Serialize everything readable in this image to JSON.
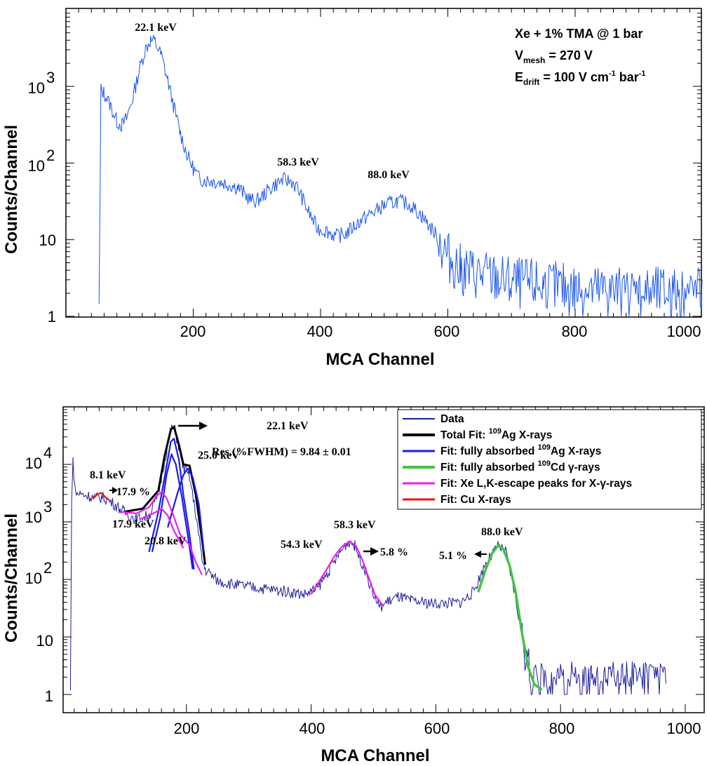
{
  "colors": {
    "data1": "#1a55f0",
    "data2": "#1e1e9c",
    "total": "#000000",
    "ag": "#1a1aee",
    "cd": "#44c244",
    "escape": "#f01cf0",
    "cu": "#ee1111"
  },
  "chart_data": [
    {
      "type": "line",
      "title": "",
      "xlabel": "MCA  Channel",
      "ylabel": "Counts/Channel",
      "yscale": "log",
      "xlim": [
        0,
        1000
      ],
      "ylim": [
        1,
        10000
      ],
      "xticks": [
        "200",
        "400",
        "600",
        "800",
        "1000"
      ],
      "yticks": [
        "1",
        "10",
        "10",
        "10"
      ],
      "ytick_exponents": [
        "",
        "",
        "2",
        "3"
      ],
      "info": {
        "line1": "Xe + 1% TMA @ 1 bar",
        "line2_main": "V",
        "line2_sub": "mesh",
        "line2_rest": " = 270 V",
        "line3_main": "E",
        "line3_sub": "drift",
        "line3_mid": " = 100 V cm",
        "line3_sup1": "-1",
        "line3_mid2": " bar",
        "line3_sup2": "-1"
      },
      "peak_labels": [
        {
          "text": "22.1 keV",
          "channel": 143
        },
        {
          "text": "58.3 keV",
          "channel": 337
        },
        {
          "text": "88.0 keV",
          "channel": 505
        }
      ],
      "series": [
        {
          "name": "Data",
          "points": [
            [
              52,
              1
            ],
            [
              55,
              900
            ],
            [
              60,
              820
            ],
            [
              70,
              560
            ],
            [
              80,
              350
            ],
            [
              88,
              310
            ],
            [
              95,
              380
            ],
            [
              105,
              700
            ],
            [
              115,
              1600
            ],
            [
              125,
              3100
            ],
            [
              133,
              4000
            ],
            [
              140,
              3800
            ],
            [
              150,
              2500
            ],
            [
              160,
              1200
            ],
            [
              170,
              520
            ],
            [
              180,
              240
            ],
            [
              190,
              130
            ],
            [
              200,
              85
            ],
            [
              210,
              62
            ],
            [
              230,
              58
            ],
            [
              250,
              55
            ],
            [
              270,
              48
            ],
            [
              280,
              40
            ],
            [
              290,
              33
            ],
            [
              300,
              32
            ],
            [
              310,
              38
            ],
            [
              325,
              50
            ],
            [
              340,
              60
            ],
            [
              355,
              58
            ],
            [
              365,
              45
            ],
            [
              380,
              24
            ],
            [
              395,
              14
            ],
            [
              410,
              13
            ],
            [
              425,
              11
            ],
            [
              440,
              12
            ],
            [
              460,
              17
            ],
            [
              480,
              22
            ],
            [
              500,
              28
            ],
            [
              520,
              32
            ],
            [
              540,
              29
            ],
            [
              560,
              20
            ],
            [
              580,
              12
            ],
            [
              600,
              6
            ],
            [
              620,
              4
            ],
            [
              650,
              3.5
            ],
            [
              680,
              3
            ],
            [
              700,
              2.7
            ],
            [
              750,
              2.5
            ],
            [
              800,
              2.2
            ],
            [
              850,
              2.1
            ],
            [
              900,
              2
            ],
            [
              950,
              2
            ],
            [
              1000,
              2
            ]
          ]
        }
      ]
    },
    {
      "type": "line",
      "title": "",
      "xlabel": "MCA  Channel",
      "ylabel": "Counts/Channel",
      "yscale": "log",
      "xlim": [
        0,
        1000
      ],
      "ylim": [
        1,
        100000
      ],
      "xticks": [
        "200",
        "400",
        "600",
        "800",
        "1000"
      ],
      "yticks": [
        "1",
        "10",
        "10",
        "10",
        "10"
      ],
      "ytick_exponents": [
        "",
        "",
        "2",
        "3",
        "4"
      ],
      "resolution_text": "Res.(%FWHM) = 9.84 ± 0.01",
      "peak_labels": [
        {
          "text": "8.1 keV",
          "channel": 60
        },
        {
          "text": "17.9 %",
          "channel": 90
        },
        {
          "text": "17.9 keV",
          "channel": 95
        },
        {
          "text": "20.8 keV",
          "channel": 150
        },
        {
          "text": "22.1 keV",
          "channel": 340
        },
        {
          "text": "25.0 keV",
          "channel": 208
        },
        {
          "text": "54.3 keV",
          "channel": 370
        },
        {
          "text": "58.3 keV",
          "channel": 460
        },
        {
          "text": "5.8 %",
          "channel": 495
        },
        {
          "text": "5.1 %",
          "channel": 640
        },
        {
          "text": "88.0 keV",
          "channel": 700
        }
      ],
      "legend": [
        {
          "label": "Data",
          "key": "data2"
        },
        {
          "label": "Total Fit: ",
          "sup": "109",
          "label2": "Ag X-rays",
          "key": "total"
        },
        {
          "label": "Fit: fully absorbed ",
          "sup": "109",
          "label2": "Ag X-rays",
          "key": "ag"
        },
        {
          "label": "Fit: fully absorbed ",
          "sup": "109",
          "label2": "Cd γ-rays",
          "key": "cd"
        },
        {
          "label": "Fit: Xe L,K-escape peaks for X-γ-rays",
          "sup": "",
          "label2": "",
          "key": "escape"
        },
        {
          "label": "Fit: Cu X-rays",
          "sup": "",
          "label2": "",
          "key": "cu"
        }
      ],
      "series": [
        {
          "name": "Data",
          "points": [
            [
              14,
              1
            ],
            [
              16,
              3000
            ],
            [
              18,
              11000
            ],
            [
              22,
              3200
            ],
            [
              40,
              2900
            ],
            [
              55,
              2600
            ],
            [
              65,
              2700
            ],
            [
              80,
              2200
            ],
            [
              100,
              1500
            ],
            [
              120,
              1100
            ],
            [
              140,
              1300
            ],
            [
              155,
              3000
            ],
            [
              165,
              12000
            ],
            [
              175,
              40000
            ],
            [
              180,
              45000
            ],
            [
              188,
              20000
            ],
            [
              195,
              9000
            ],
            [
              205,
              6000
            ],
            [
              215,
              1400
            ],
            [
              225,
              220
            ],
            [
              230,
              150
            ],
            [
              250,
              95
            ],
            [
              280,
              80
            ],
            [
              320,
              70
            ],
            [
              360,
              62
            ],
            [
              390,
              55
            ],
            [
              410,
              70
            ],
            [
              430,
              150
            ],
            [
              445,
              280
            ],
            [
              455,
              400
            ],
            [
              462,
              460
            ],
            [
              470,
              380
            ],
            [
              485,
              160
            ],
            [
              500,
              55
            ],
            [
              510,
              32
            ],
            [
              520,
              40
            ],
            [
              540,
              50
            ],
            [
              560,
              42
            ],
            [
              600,
              38
            ],
            [
              640,
              40
            ],
            [
              660,
              60
            ],
            [
              680,
              190
            ],
            [
              700,
              380
            ],
            [
              712,
              300
            ],
            [
              725,
              70
            ],
            [
              740,
              8
            ],
            [
              750,
              2.5
            ],
            [
              760,
              1.5
            ],
            [
              800,
              1.8
            ],
            [
              850,
              1.6
            ],
            [
              900,
              1.8
            ],
            [
              970,
              1.7
            ]
          ]
        },
        {
          "name": "Total Fit: 109Ag X-rays",
          "points": [
            [
              100,
              1500
            ],
            [
              130,
              1700
            ],
            [
              155,
              3500
            ],
            [
              165,
              14000
            ],
            [
              175,
              40000
            ],
            [
              180,
              45000
            ],
            [
              188,
              22000
            ],
            [
              195,
              10000
            ],
            [
              205,
              9500
            ],
            [
              215,
              3000
            ],
            [
              225,
              500
            ],
            [
              230,
              180
            ]
          ]
        },
        {
          "name": "Fit: fully absorbed 109Ag X-rays (22.1 keV)",
          "points": [
            [
              140,
              300
            ],
            [
              155,
              1500
            ],
            [
              165,
              6000
            ],
            [
              175,
              25000
            ],
            [
              180,
              28000
            ],
            [
              188,
              12000
            ],
            [
              195,
              3000
            ],
            [
              205,
              600
            ],
            [
              212,
              150
            ]
          ]
        },
        {
          "name": "Fit: fully absorbed 109Ag X-rays (21.9 keV)",
          "points": [
            [
              145,
              300
            ],
            [
              158,
              1200
            ],
            [
              168,
              6500
            ],
            [
              176,
              15000
            ],
            [
              183,
              10000
            ],
            [
              192,
              3000
            ],
            [
              202,
              600
            ],
            [
              210,
              150
            ]
          ]
        },
        {
          "name": "Fit: fully absorbed 109Ag X-rays (25.0 keV)",
          "points": [
            [
              170,
              800
            ],
            [
              185,
              3000
            ],
            [
              195,
              6500
            ],
            [
              202,
              8500
            ],
            [
              210,
              6000
            ],
            [
              220,
              2000
            ],
            [
              228,
              300
            ]
          ]
        },
        {
          "name": "Fit: fully absorbed 109Cd γ-rays",
          "points": [
            [
              668,
              60
            ],
            [
              680,
              150
            ],
            [
              690,
              280
            ],
            [
              700,
              390
            ],
            [
              708,
              340
            ],
            [
              718,
              180
            ],
            [
              728,
              60
            ],
            [
              738,
              12
            ],
            [
              748,
              3
            ],
            [
              758,
              1.5
            ],
            [
              770,
              1.2
            ]
          ]
        },
        {
          "name": "Fit: Xe L,K-escape peaks for X-γ-rays",
          "points": [
            [
              95,
              1500
            ],
            [
              120,
              1400
            ],
            [
              140,
              1800
            ],
            [
              152,
              2800
            ],
            [
              160,
              3300
            ],
            [
              168,
              2600
            ],
            [
              178,
              1400
            ],
            [
              190,
              600
            ],
            [
              205,
              400
            ],
            [
              215,
              200
            ],
            [
              225,
              120
            ]
          ]
        },
        {
          "name": "Fit: Xe L,K-escape peaks for X-γ-rays (2)",
          "points": [
            [
              125,
              1100
            ],
            [
              140,
              1300
            ],
            [
              152,
              1500
            ],
            [
              160,
              1700
            ],
            [
              170,
              1300
            ],
            [
              180,
              700
            ],
            [
              195,
              350
            ]
          ]
        },
        {
          "name": "Fit: Xe L,K-escape peaks for X-γ-rays (58 keV)",
          "points": [
            [
              400,
              55
            ],
            [
              412,
              90
            ],
            [
              425,
              150
            ],
            [
              438,
              260
            ],
            [
              450,
              380
            ],
            [
              462,
              460
            ],
            [
              472,
              380
            ],
            [
              482,
              220
            ],
            [
              492,
              110
            ],
            [
              502,
              55
            ],
            [
              515,
              35
            ]
          ]
        },
        {
          "name": "Fit: Cu X-rays",
          "points": [
            [
              50,
              2500
            ],
            [
              57,
              3000
            ],
            [
              63,
              3200
            ],
            [
              70,
              2700
            ],
            [
              76,
              2400
            ]
          ]
        }
      ]
    }
  ]
}
